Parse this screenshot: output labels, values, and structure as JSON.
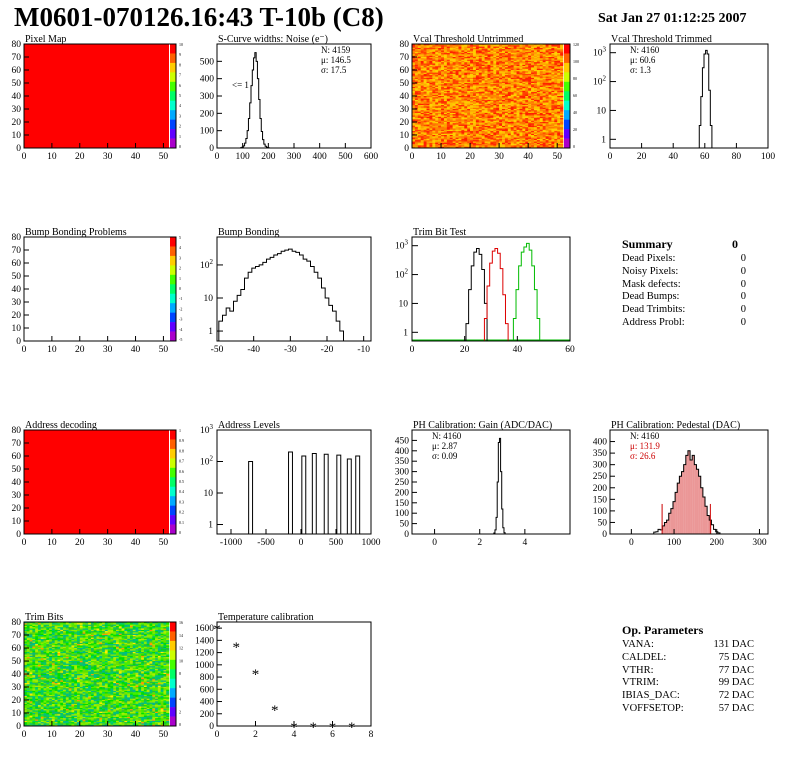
{
  "header": {
    "title": "M0601-070126.16:43 T-10b (C8)",
    "date": "Sat Jan 27 01:12:25 2007"
  },
  "colors": {
    "line": "#000000",
    "red_map": "#ff0000",
    "trim_red": "#dd0000",
    "trim_green": "#00bb00",
    "ped_fill": "#e06060"
  },
  "summary": {
    "title": "Summary",
    "total": "0",
    "rows": [
      {
        "label": "Dead Pixels:",
        "value": "0"
      },
      {
        "label": "Noisy Pixels:",
        "value": "0"
      },
      {
        "label": "Mask defects:",
        "value": "0"
      },
      {
        "label": "Dead Bumps:",
        "value": "0"
      },
      {
        "label": "Dead Trimbits:",
        "value": "0"
      },
      {
        "label": "Address Probl:",
        "value": "0"
      }
    ]
  },
  "op_params": {
    "title": "Op. Parameters",
    "rows": [
      {
        "label": "VANA:",
        "value": "131 DAC"
      },
      {
        "label": "CALDEL:",
        "value": "75 DAC"
      },
      {
        "label": "VTHR:",
        "value": "77 DAC"
      },
      {
        "label": "VTRIM:",
        "value": "99 DAC"
      },
      {
        "label": "IBIAS_DAC:",
        "value": "72 DAC"
      },
      {
        "label": "VOFFSETOP:",
        "value": "57 DAC"
      }
    ]
  },
  "chart_data": [
    {
      "id": "pixel-map",
      "type": "heatmap",
      "title": "Pixel Map",
      "fill": "solid-red",
      "xlim": [
        0,
        52
      ],
      "ylim": [
        0,
        80
      ],
      "xticks": [
        0,
        10,
        20,
        30,
        40,
        50
      ],
      "yticks": [
        0,
        10,
        20,
        30,
        40,
        50,
        60,
        70,
        80
      ],
      "palette_labels": [
        "10",
        "9",
        "8",
        "7",
        "6",
        "5",
        "4",
        "3",
        "2",
        "1",
        "0"
      ]
    },
    {
      "id": "scurve-noise",
      "type": "histogram",
      "title": "S-Curve widths: Noise (e⁻)",
      "log": false,
      "xlim": [
        0,
        600
      ],
      "ylim": [
        0,
        600
      ],
      "xticks": [
        0,
        100,
        200,
        300,
        400,
        500,
        600
      ],
      "yticks": [
        0,
        100,
        200,
        300,
        400,
        500
      ],
      "stats": [
        "N: 4159",
        "μ: 146.5",
        "σ: 17.5"
      ],
      "annotation": "<= 1",
      "bins": [
        [
          95,
          2
        ],
        [
          100,
          5
        ],
        [
          105,
          12
        ],
        [
          110,
          28
        ],
        [
          115,
          55
        ],
        [
          120,
          100
        ],
        [
          125,
          170
        ],
        [
          130,
          260
        ],
        [
          135,
          360
        ],
        [
          140,
          450
        ],
        [
          145,
          520
        ],
        [
          150,
          550
        ],
        [
          155,
          500
        ],
        [
          160,
          400
        ],
        [
          165,
          280
        ],
        [
          170,
          170
        ],
        [
          175,
          95
        ],
        [
          180,
          48
        ],
        [
          185,
          22
        ],
        [
          190,
          10
        ],
        [
          195,
          4
        ],
        [
          200,
          2
        ]
      ]
    },
    {
      "id": "vcal-untrimmed",
      "type": "heatmap",
      "title": "Vcal Threshold Untrimmed",
      "fill": "noise-hot",
      "xlim": [
        0,
        52
      ],
      "ylim": [
        0,
        80
      ],
      "xticks": [
        0,
        10,
        20,
        30,
        40,
        50
      ],
      "yticks": [
        0,
        10,
        20,
        30,
        40,
        50,
        60,
        70,
        80
      ],
      "palette_labels": [
        "120",
        "100",
        "80",
        "60",
        "40",
        "20",
        "0"
      ]
    },
    {
      "id": "vcal-trimmed",
      "type": "histogram",
      "title": "Vcal Threshold Trimmed",
      "log": true,
      "xlim": [
        0,
        100
      ],
      "ylim": [
        0.5,
        2000
      ],
      "xticks": [
        0,
        20,
        40,
        60,
        80,
        100
      ],
      "stats": [
        "N: 4160",
        "μ: 60.6",
        "σ: 1.3"
      ],
      "bins": [
        [
          57,
          3
        ],
        [
          58,
          30
        ],
        [
          59,
          300
        ],
        [
          60,
          900
        ],
        [
          61,
          1200
        ],
        [
          62,
          900
        ],
        [
          63,
          50
        ],
        [
          64,
          3
        ]
      ]
    },
    {
      "id": "bump-problems",
      "type": "heatmap",
      "title": "Bump Bonding Problems",
      "fill": "empty",
      "xlim": [
        0,
        52
      ],
      "ylim": [
        0,
        80
      ],
      "xticks": [
        0,
        10,
        20,
        30,
        40,
        50
      ],
      "yticks": [
        0,
        10,
        20,
        30,
        40,
        50,
        60,
        70,
        80
      ],
      "palette_labels": [
        "5",
        "4",
        "3",
        "2",
        "1",
        "0",
        "-1",
        "-2",
        "-3",
        "-4",
        "-5"
      ]
    },
    {
      "id": "bump-bonding",
      "type": "histogram",
      "title": "Bump Bonding",
      "log": true,
      "xlim": [
        -50,
        -8
      ],
      "ylim": [
        0.5,
        700
      ],
      "xticks": [
        -50,
        -40,
        -30,
        -20,
        -10
      ],
      "bins": [
        [
          -49,
          2
        ],
        [
          -48,
          3
        ],
        [
          -47,
          5
        ],
        [
          -46,
          4
        ],
        [
          -45,
          8
        ],
        [
          -44,
          12
        ],
        [
          -43,
          18
        ],
        [
          -42,
          40
        ],
        [
          -41,
          60
        ],
        [
          -40,
          80
        ],
        [
          -39,
          90
        ],
        [
          -38,
          100
        ],
        [
          -37,
          120
        ],
        [
          -36,
          150
        ],
        [
          -35,
          170
        ],
        [
          -34,
          200
        ],
        [
          -33,
          220
        ],
        [
          -32,
          260
        ],
        [
          -31,
          280
        ],
        [
          -30,
          300
        ],
        [
          -29,
          260
        ],
        [
          -28,
          240
        ],
        [
          -27,
          200
        ],
        [
          -26,
          150
        ],
        [
          -25,
          130
        ],
        [
          -24,
          90
        ],
        [
          -23,
          60
        ],
        [
          -22,
          40
        ],
        [
          -21,
          20
        ],
        [
          -20,
          10
        ],
        [
          -19,
          6
        ],
        [
          -18,
          4
        ],
        [
          -17,
          2
        ],
        [
          -16,
          1
        ]
      ]
    },
    {
      "id": "trim-bit-test",
      "type": "histogram",
      "title": "Trim Bit Test",
      "log": true,
      "xlim": [
        0,
        60
      ],
      "ylim": [
        0.5,
        2000
      ],
      "xticks": [
        0,
        20,
        40,
        60
      ],
      "series": [
        {
          "name": "black",
          "color": "#000000",
          "bins": [
            [
              21,
              2
            ],
            [
              22,
              30
            ],
            [
              23,
              200
            ],
            [
              24,
              600
            ],
            [
              25,
              800
            ],
            [
              26,
              500
            ],
            [
              27,
              150
            ],
            [
              28,
              10
            ]
          ]
        },
        {
          "name": "red",
          "color": "#dd0000",
          "bins": [
            [
              28,
              3
            ],
            [
              29,
              40
            ],
            [
              30,
              250
            ],
            [
              31,
              650
            ],
            [
              32,
              800
            ],
            [
              33,
              550
            ],
            [
              34,
              160
            ],
            [
              35,
              20
            ],
            [
              36,
              2
            ]
          ]
        },
        {
          "name": "green",
          "color": "#00bb00",
          "bins": [
            [
              39,
              3
            ],
            [
              40,
              30
            ],
            [
              41,
              200
            ],
            [
              42,
              600
            ],
            [
              43,
              900
            ],
            [
              44,
              1200
            ],
            [
              45,
              700
            ],
            [
              46,
              200
            ],
            [
              47,
              30
            ],
            [
              48,
              3
            ]
          ]
        }
      ]
    },
    {
      "id": "address-decoding",
      "type": "heatmap",
      "title": "Address decoding",
      "fill": "solid-red",
      "xlim": [
        0,
        52
      ],
      "ylim": [
        0,
        80
      ],
      "xticks": [
        0,
        10,
        20,
        30,
        40,
        50
      ],
      "yticks": [
        0,
        10,
        20,
        30,
        40,
        50,
        60,
        70,
        80
      ],
      "palette_labels": [
        "1",
        "0.9",
        "0.8",
        "0.7",
        "0.6",
        "0.5",
        "0.4",
        "0.3",
        "0.2",
        "0.1",
        "0"
      ]
    },
    {
      "id": "address-levels",
      "type": "histogram",
      "title": "Address Levels",
      "log": true,
      "xlim": [
        -1200,
        1000
      ],
      "ylim": [
        0.5,
        1000
      ],
      "xticks": [
        -1000,
        -500,
        0,
        500,
        1000
      ],
      "peaks": [
        -720,
        -150,
        40,
        190,
        360,
        540,
        690,
        810
      ],
      "peak_heights": [
        100,
        200,
        150,
        180,
        170,
        160,
        120,
        150
      ]
    },
    {
      "id": "ph-gain",
      "type": "histogram",
      "title": "PH Calibration: Gain (ADC/DAC)",
      "log": false,
      "xlim": [
        -1,
        6
      ],
      "ylim": [
        0,
        500
      ],
      "xticks": [
        0,
        2,
        4
      ],
      "yticks": [
        0,
        50,
        100,
        150,
        200,
        250,
        300,
        350,
        400,
        450
      ],
      "stats": [
        "N: 4160",
        "μ: 2.87",
        "σ: 0.09"
      ],
      "bins": [
        [
          2.65,
          5
        ],
        [
          2.7,
          20
        ],
        [
          2.75,
          80
        ],
        [
          2.8,
          250
        ],
        [
          2.85,
          440
        ],
        [
          2.9,
          460
        ],
        [
          2.95,
          300
        ],
        [
          3.0,
          120
        ],
        [
          3.05,
          30
        ],
        [
          3.1,
          6
        ]
      ]
    },
    {
      "id": "ph-pedestal",
      "type": "histogram",
      "title": "PH Calibration: Pedestal (DAC)",
      "log": false,
      "xlim": [
        -50,
        320
      ],
      "ylim": [
        0,
        450
      ],
      "xticks": [
        0,
        100,
        200,
        300
      ],
      "yticks": [
        0,
        50,
        100,
        150,
        200,
        250,
        300,
        350,
        400
      ],
      "stats": [
        "N: 4160",
        "μ: 131.9",
        "σ: 26.6"
      ],
      "cut_lines": [
        72,
        185
      ],
      "bins": [
        [
          55,
          8
        ],
        [
          60,
          10
        ],
        [
          65,
          20
        ],
        [
          70,
          18
        ],
        [
          75,
          35
        ],
        [
          80,
          50
        ],
        [
          85,
          60
        ],
        [
          90,
          90
        ],
        [
          95,
          110
        ],
        [
          100,
          140
        ],
        [
          105,
          180
        ],
        [
          110,
          220
        ],
        [
          115,
          250
        ],
        [
          120,
          270
        ],
        [
          125,
          300
        ],
        [
          130,
          340
        ],
        [
          135,
          360
        ],
        [
          140,
          320
        ],
        [
          145,
          340
        ],
        [
          150,
          300
        ],
        [
          155,
          280
        ],
        [
          160,
          250
        ],
        [
          165,
          200
        ],
        [
          170,
          160
        ],
        [
          175,
          120
        ],
        [
          180,
          80
        ],
        [
          185,
          60
        ],
        [
          190,
          40
        ],
        [
          195,
          20
        ],
        [
          200,
          10
        ],
        [
          205,
          5
        ]
      ]
    },
    {
      "id": "trim-bits",
      "type": "heatmap",
      "title": "Trim Bits",
      "fill": "noise-green",
      "xlim": [
        0,
        52
      ],
      "ylim": [
        0,
        80
      ],
      "xticks": [
        0,
        10,
        20,
        30,
        40,
        50
      ],
      "yticks": [
        0,
        10,
        20,
        30,
        40,
        50,
        60,
        70,
        80
      ],
      "palette_labels": [
        "16",
        "14",
        "12",
        "10",
        "8",
        "6",
        "4",
        "2",
        "0"
      ]
    },
    {
      "id": "temperature-calibration",
      "type": "scatter",
      "title": "Temperature calibration",
      "log": false,
      "xlim": [
        0,
        8
      ],
      "ylim": [
        0,
        1700
      ],
      "xticks": [
        0,
        2,
        4,
        6,
        8
      ],
      "yticks": [
        0,
        200,
        400,
        600,
        800,
        1000,
        1200,
        1400,
        1600
      ],
      "points": [
        [
          0,
          1600
        ],
        [
          1,
          1310
        ],
        [
          2,
          870
        ],
        [
          3,
          280
        ],
        [
          4,
          0
        ],
        [
          5,
          0
        ],
        [
          6,
          0
        ],
        [
          7,
          0
        ]
      ]
    }
  ]
}
